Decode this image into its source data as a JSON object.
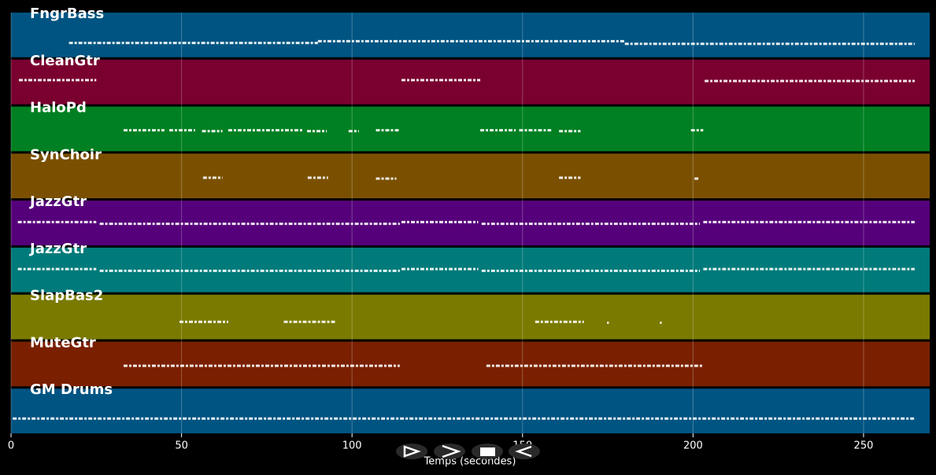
{
  "chart_data": {
    "type": "pianoroll",
    "xlabel": "Temps (secondes)",
    "xlim": [
      0,
      269.4
    ],
    "xticks": [
      0,
      50,
      100,
      150,
      200,
      250
    ],
    "grid": true,
    "tracks": [
      {
        "name": "FngrBass",
        "color": "#005482",
        "segments": [
          [
            17,
            90,
            0.68
          ],
          [
            90,
            180,
            0.64
          ],
          [
            180,
            265,
            0.7
          ]
        ]
      },
      {
        "name": "CleanGtr",
        "color": "#7a0030",
        "segments": [
          [
            2.3,
            25,
            0.46
          ],
          [
            114.5,
            137.6,
            0.46
          ],
          [
            203.4,
            265,
            0.48
          ]
        ]
      },
      {
        "name": "HaloPd",
        "color": "#008022",
        "segments": [
          [
            33,
            45,
            0.53
          ],
          [
            46.4,
            54,
            0.53
          ],
          [
            56,
            62,
            0.55
          ],
          [
            63.7,
            85.6,
            0.53
          ],
          [
            86.8,
            92.6,
            0.55
          ],
          [
            99,
            102,
            0.55
          ],
          [
            107,
            113.8,
            0.53
          ],
          [
            137.6,
            148,
            0.53
          ],
          [
            149,
            158.4,
            0.53
          ],
          [
            160.7,
            167,
            0.55
          ],
          [
            199.4,
            203,
            0.53
          ]
        ]
      },
      {
        "name": "SynChoir",
        "color": "#7a5000",
        "segments": [
          [
            56.3,
            62,
            0.54
          ],
          [
            87,
            93,
            0.54
          ],
          [
            107,
            113,
            0.56
          ],
          [
            160.7,
            167,
            0.54
          ],
          [
            200.4,
            202,
            0.56
          ]
        ]
      },
      {
        "name": "JazzGtr",
        "color": "#55007a",
        "segments": [
          [
            2,
            25,
            0.48
          ],
          [
            26,
            114,
            0.52
          ],
          [
            114.5,
            137,
            0.48
          ],
          [
            138,
            202,
            0.52
          ],
          [
            203,
            265,
            0.48
          ]
        ]
      },
      {
        "name": "JazzGtr",
        "color": "#007a7a",
        "segments": [
          [
            2,
            25,
            0.48
          ],
          [
            26,
            114,
            0.52
          ],
          [
            114.5,
            137,
            0.48
          ],
          [
            138,
            202,
            0.52
          ],
          [
            203,
            265,
            0.48
          ]
        ]
      },
      {
        "name": "SlapBas2",
        "color": "#7a7a00",
        "segments": [
          [
            49.4,
            63.7,
            0.61
          ],
          [
            80,
            95,
            0.61
          ],
          [
            153.7,
            168,
            0.61
          ],
          [
            174.8,
            175.3,
            0.63
          ],
          [
            190.3,
            190.8,
            0.63
          ]
        ]
      },
      {
        "name": "MuteGtr",
        "color": "#7a2000",
        "segments": [
          [
            33,
            114,
            0.54
          ],
          [
            139.4,
            203,
            0.54
          ]
        ]
      },
      {
        "name": "GM Drums",
        "color": "#005482",
        "segments": [
          [
            0.5,
            265,
            0.67
          ]
        ]
      }
    ]
  }
}
